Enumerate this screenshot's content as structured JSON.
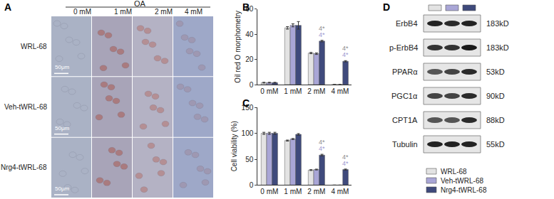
{
  "chart_data": [
    {
      "type": "bar",
      "y_label": "Oil red O morphometry",
      "categories": [
        "0 mM",
        "1 mM",
        "2 mM",
        "4 mM"
      ],
      "series": [
        {
          "name": "WRL-68",
          "color": "#e3e3e3",
          "values": [
            1.5,
            45,
            25,
            0
          ],
          "errors": [
            0.3,
            1,
            0.5,
            0
          ]
        },
        {
          "name": "Veh-tWRL-68",
          "color": "#a9a6d6",
          "values": [
            1.5,
            47,
            24.5,
            0
          ],
          "errors": [
            0.3,
            1.2,
            0.6,
            0
          ]
        },
        {
          "name": "Nrg4-tWRL-68",
          "color": "#3f4a7c",
          "values": [
            1.5,
            47,
            34.5,
            18.5
          ],
          "errors": [
            0.3,
            3,
            0.6,
            0.5
          ]
        }
      ],
      "ylim": [
        0,
        60
      ],
      "yticks": [
        0,
        20,
        40,
        60
      ],
      "annotations": [
        {
          "category": "2 mM",
          "series": "Nrg4-tWRL-68",
          "text": "4*",
          "color": "#8c8c8c"
        },
        {
          "category": "2 mM",
          "series": "Nrg4-tWRL-68",
          "text": "4*",
          "color": "#9b97d0"
        },
        {
          "category": "4 mM",
          "series": "Nrg4-tWRL-68",
          "text": "4*",
          "color": "#8c8c8c"
        },
        {
          "category": "4 mM",
          "series": "Nrg4-tWRL-68",
          "text": "4*",
          "color": "#9b97d0"
        }
      ]
    },
    {
      "type": "bar",
      "y_label": "Cell viability (%)",
      "categories": [
        "0 mM",
        "1 mM",
        "2 mM",
        "4 mM"
      ],
      "series": [
        {
          "name": "WRL-68",
          "color": "#e3e3e3",
          "values": [
            100,
            86,
            29,
            0
          ],
          "errors": [
            2,
            1,
            0.8,
            0
          ]
        },
        {
          "name": "Veh-tWRL-68",
          "color": "#a9a6d6",
          "values": [
            100,
            89,
            30,
            0
          ],
          "errors": [
            2,
            1,
            0.8,
            0
          ]
        },
        {
          "name": "Nrg4-tWRL-68",
          "color": "#3f4a7c",
          "values": [
            100,
            98,
            58,
            30
          ],
          "errors": [
            2,
            1.5,
            1.5,
            1
          ]
        }
      ],
      "ylim": [
        0,
        150
      ],
      "yticks": [
        0,
        50,
        100,
        150
      ],
      "annotations": [
        {
          "category": "2 mM",
          "series": "Nrg4-tWRL-68",
          "text": "4*",
          "color": "#8c8c8c"
        },
        {
          "category": "2 mM",
          "series": "Nrg4-tWRL-68",
          "text": "4*",
          "color": "#9b97d0"
        },
        {
          "category": "4 mM",
          "series": "Nrg4-tWRL-68",
          "text": "4*",
          "color": "#8c8c8c"
        },
        {
          "category": "4 mM",
          "series": "Nrg4-tWRL-68",
          "text": "4*",
          "color": "#9b97d0"
        }
      ]
    }
  ],
  "panel_labels": [
    "A",
    "B",
    "C",
    "D"
  ],
  "micrographs": {
    "header": "OA",
    "columns": [
      "0 mM",
      "1 mM",
      "2 mM",
      "4 mM"
    ],
    "rows": [
      "WRL-68",
      "Veh-tWRL-68",
      "Nrg4-tWRL-68"
    ],
    "scale_bar": "50μm"
  },
  "western_blot": {
    "proteins": [
      {
        "name": "ErbB4",
        "size": "183kD"
      },
      {
        "name": "p-ErbB4",
        "size": "183kD"
      },
      {
        "name": "PPARα",
        "size": "53kD"
      },
      {
        "name": "PGC1α",
        "size": "90kD"
      },
      {
        "name": "CPT1A",
        "size": "88kD"
      },
      {
        "name": "Tubulin",
        "size": "55kD"
      }
    ]
  }
}
